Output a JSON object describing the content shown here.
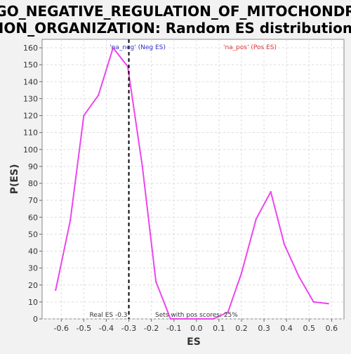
{
  "chart_data": {
    "type": "line",
    "title_lines": [
      "GO_NEGATIVE_REGULATION_OF_MITOCHONDR",
      "ION_ORGANIZATION: Random ES distribution"
    ],
    "xlabel": "ES",
    "ylabel": "P(ES)",
    "xlim": [
      -0.685,
      0.655
    ],
    "ylim": [
      0,
      165
    ],
    "xticks": [
      -0.6,
      -0.5,
      -0.4,
      -0.3,
      -0.2,
      -0.1,
      0.0,
      0.1,
      0.2,
      0.3,
      0.4,
      0.5,
      0.6
    ],
    "yticks": [
      0,
      10,
      20,
      30,
      40,
      50,
      60,
      70,
      80,
      90,
      100,
      110,
      120,
      130,
      140,
      150,
      160
    ],
    "grid": true,
    "series": [
      {
        "color": "#ee44ee",
        "x": [
          -0.625,
          -0.56,
          -0.5,
          -0.435,
          -0.37,
          -0.305,
          -0.24,
          -0.18,
          -0.115,
          -0.05,
          0.01,
          0.075,
          0.14,
          0.2,
          0.265,
          0.33,
          0.39,
          0.455,
          0.52,
          0.585
        ],
        "y": [
          17,
          58,
          120,
          132,
          160,
          149,
          90,
          22,
          0,
          0,
          0,
          0,
          4,
          27,
          59,
          75,
          44,
          25,
          10,
          9
        ]
      }
    ],
    "real_es": {
      "x": -0.3,
      "label": "Real ES -0.3"
    },
    "annotations": [
      {
        "text": "'na_neg' (Neg ES)",
        "color": "#3333cc"
      },
      {
        "text": "'na_pos' (Pos ES)",
        "color": "#dd3333"
      },
      {
        "text": "Sets with pos scores: 25%",
        "color": "#333333"
      }
    ]
  }
}
